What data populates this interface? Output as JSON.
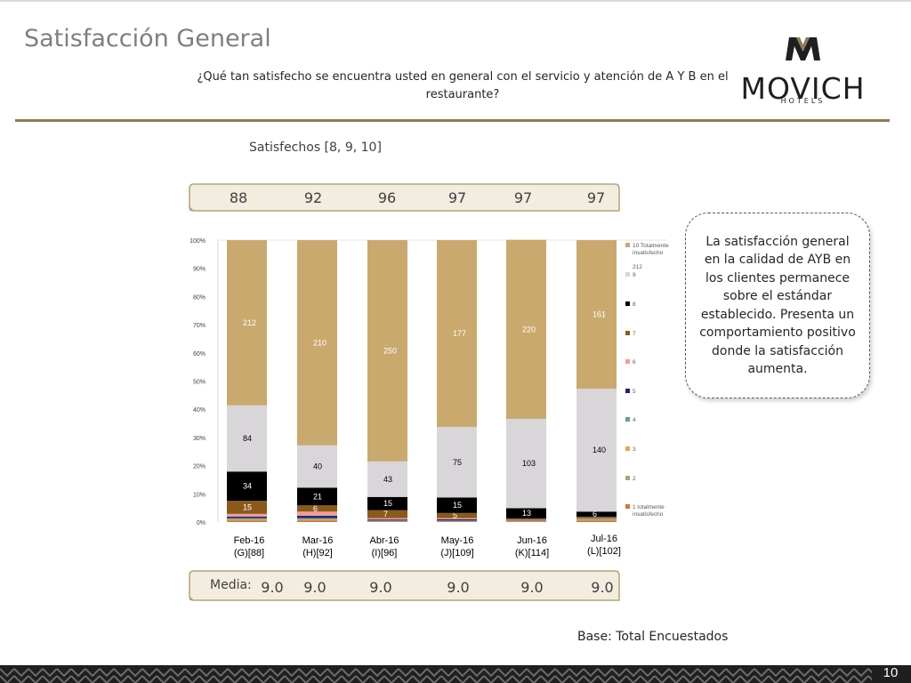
{
  "header": {
    "title": "Satisfacción General",
    "question": "¿Qué tan satisfecho se encuentra usted en general con el servicio y atención de A Y B en el restaurante?"
  },
  "logo": {
    "word": "MOVICH",
    "sub": "HOTELS"
  },
  "satisfied": {
    "label": "Satisfechos [8, 9, 10]",
    "values": [
      "88",
      "92",
      "96",
      "97",
      "97",
      "97"
    ]
  },
  "media": {
    "label": "Media:",
    "values": [
      "9.0",
      "9.0",
      "9.0",
      "9.0",
      "9.0",
      "9.0"
    ]
  },
  "callout": "La satisfacción general en la calidad de AYB en los clientes permanece sobre el estándar establecido. Presenta un comportamiento positivo donde la satisfacción aumenta.",
  "base_note": "Base: Total Encuestados",
  "page_number": "10",
  "colors": {
    "accent": "#8c7b55",
    "banner_fill": "#f2eddf",
    "banner_border": "#b5a47a",
    "footer_dark": "#1f1f1f",
    "footer_light": "#6b6b6b"
  },
  "chart_data": {
    "type": "bar",
    "stacked": true,
    "percent": true,
    "categories": [
      [
        "Feb-16",
        "(G)[88]"
      ],
      [
        "Mar-16",
        "(H)[92]"
      ],
      [
        "Abr-16",
        "(I)[96]"
      ],
      [
        "May-16",
        "(J)[109]"
      ],
      [
        "Jun-16",
        "(K)[114]"
      ],
      [
        "Jul-16",
        "(L)[102]"
      ]
    ],
    "y_ticks": [
      "0%",
      "10%",
      "20%",
      "30%",
      "40%",
      "50%",
      "60%",
      "70%",
      "80%",
      "90%",
      "100%"
    ],
    "ylim": [
      0,
      100
    ],
    "legend_placement": "right",
    "series": [
      {
        "name": "1 totalmente insatisfecho",
        "color": "#d4782f",
        "values": [
          0.5,
          0.5,
          0.2,
          0.2,
          0.2,
          0.5
        ],
        "labels": [
          "",
          "",
          "",
          "",
          "",
          ""
        ]
      },
      {
        "name": "2",
        "color": "#a5a57a",
        "values": [
          0.3,
          0.3,
          0.1,
          0.1,
          0.1,
          0.3
        ],
        "labels": [
          "",
          "",
          "",
          "",
          "",
          ""
        ]
      },
      {
        "name": "3",
        "color": "#e3a84d",
        "values": [
          0.3,
          0.3,
          0.1,
          0.1,
          0.1,
          0.3
        ],
        "labels": [
          "",
          "",
          "",
          "",
          "",
          ""
        ]
      },
      {
        "name": "4",
        "color": "#6f9aa0",
        "values": [
          0.3,
          0.3,
          0.1,
          0.1,
          0.1,
          0.1
        ],
        "labels": [
          "",
          "",
          "",
          "",
          "",
          ""
        ]
      },
      {
        "name": "5",
        "color": "#1a237e",
        "values": [
          0.5,
          0.8,
          0.4,
          0.5,
          0.1,
          0.2
        ],
        "labels": [
          "",
          "",
          "",
          "",
          "",
          ""
        ]
      },
      {
        "name": "6",
        "color": "#f29c94",
        "values": [
          1.0,
          1.5,
          0.5,
          0.4,
          0.2,
          0.1
        ],
        "labels": [
          "",
          "",
          "",
          "",
          "",
          ""
        ]
      },
      {
        "name": "7",
        "color": "#8b5a1a",
        "values": [
          4.6,
          2.2,
          2.8,
          1.8,
          0.5,
          0.4
        ],
        "labels": [
          "15",
          "6",
          "7",
          "5",
          "",
          ""
        ]
      },
      {
        "name": "8",
        "color": "#000000",
        "values": [
          10.4,
          6.3,
          4.7,
          5.5,
          3.6,
          1.8
        ],
        "labels": [
          "34",
          "21",
          "15",
          "15",
          "13",
          "6"
        ]
      },
      {
        "name": "9",
        "color": "#d9d6d9",
        "values": [
          23.5,
          15.0,
          12.6,
          25.0,
          31.7,
          43.6
        ],
        "labels": [
          "84",
          "40",
          "43",
          "75",
          "103",
          "140"
        ]
      },
      {
        "name": "10 Totalmente insatisfecho",
        "color": "#c9a96e",
        "values": [
          58.6,
          72.8,
          78.5,
          66.3,
          63.5,
          52.7
        ],
        "labels": [
          "212",
          "210",
          "250",
          "177",
          "220",
          "161"
        ]
      }
    ],
    "legend_extra": "212"
  }
}
